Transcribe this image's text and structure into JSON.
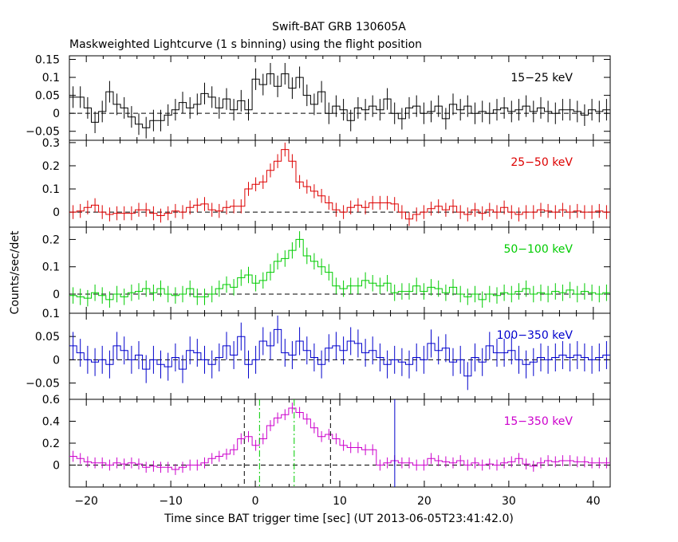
{
  "title_line1": "Swift-BAT GRB 130605A",
  "title_line2": "Maskweighted Lightcurve (1 s binning) using the flight position",
  "ylabel": "Counts/sec/det",
  "xlabel": "Time since BAT trigger time [sec] (UT 2013-06-05T23:41:42.0)",
  "chart_data": {
    "type": "line",
    "style": "step-with-error-bars",
    "x_range": [
      -22,
      42
    ],
    "x_ticks": [
      -20,
      -10,
      0,
      10,
      20,
      30,
      40
    ],
    "x_tick_labels": [
      "−20",
      "−10",
      "0",
      "10",
      "20",
      "30",
      "40"
    ],
    "zero_reference_line": "dashed",
    "panels": [
      {
        "name": "15−25 keV",
        "color": "#000000",
        "ylim": [
          -0.075,
          0.16
        ],
        "y_ticks": [
          -0.05,
          0,
          0.05,
          0.1,
          0.15
        ],
        "y_tick_labels": [
          "−0.05",
          "0",
          "0.05",
          "0.1",
          "0.15"
        ],
        "err": 0.03,
        "values": [
          0.045,
          0.045,
          0.015,
          -0.025,
          0.005,
          0.06,
          0.025,
          0.015,
          -0.01,
          -0.03,
          -0.04,
          -0.02,
          -0.02,
          -0.005,
          0.01,
          0.03,
          0.015,
          0.025,
          0.055,
          0.045,
          0.015,
          0.04,
          0.01,
          0.035,
          0.01,
          0.095,
          0.08,
          0.11,
          0.075,
          0.11,
          0.07,
          0.1,
          0.05,
          0.025,
          0.06,
          0.0,
          0.02,
          0.01,
          -0.02,
          0.015,
          0.01,
          0.02,
          0.01,
          0.04,
          0.0,
          -0.015,
          0.015,
          0.02,
          0.0,
          0.005,
          0.02,
          -0.015,
          0.025,
          0.01,
          0.02,
          0.0,
          0.005,
          0.0,
          0.01,
          0.015,
          0.005,
          0.01,
          0.02,
          0.005,
          0.015,
          0.005,
          0.0,
          0.01,
          0.01,
          0.005,
          -0.005,
          0.01,
          0.005,
          0.01
        ]
      },
      {
        "name": "25−50 keV",
        "color": "#dd0000",
        "ylim": [
          -0.065,
          0.31
        ],
        "y_ticks": [
          0,
          0.1,
          0.2,
          0.3
        ],
        "y_tick_labels": [
          "0",
          "0.1",
          "0.2",
          "0.3"
        ],
        "err": 0.03,
        "values": [
          0.0,
          0.005,
          0.02,
          0.03,
          0.0,
          -0.01,
          -0.005,
          -0.005,
          -0.005,
          0.01,
          0.01,
          -0.005,
          -0.015,
          -0.005,
          0.005,
          0.0,
          0.02,
          0.03,
          0.035,
          0.01,
          0.005,
          0.02,
          0.025,
          0.025,
          0.1,
          0.12,
          0.13,
          0.18,
          0.22,
          0.27,
          0.22,
          0.13,
          0.11,
          0.09,
          0.07,
          0.04,
          0.01,
          0.0,
          0.02,
          0.03,
          0.02,
          0.04,
          0.04,
          0.04,
          0.035,
          0.0,
          -0.03,
          -0.01,
          0.0,
          0.015,
          0.025,
          0.01,
          0.025,
          0.0,
          -0.01,
          0.01,
          -0.005,
          0.01,
          0.0,
          0.02,
          0.0,
          -0.01,
          0.0,
          0.0,
          0.01,
          0.005,
          0.0,
          0.01,
          0.0,
          0.005,
          0.0,
          0.0,
          0.005,
          0.0
        ]
      },
      {
        "name": "50−100 keV",
        "color": "#00cc00",
        "ylim": [
          -0.07,
          0.245
        ],
        "y_ticks": [
          0,
          0.1,
          0.2
        ],
        "y_tick_labels": [
          "0",
          "0.1",
          "0.2"
        ],
        "err": 0.03,
        "values": [
          -0.005,
          -0.01,
          -0.015,
          0.005,
          -0.005,
          -0.02,
          0.0,
          -0.01,
          0.005,
          0.01,
          0.02,
          0.005,
          0.02,
          0.0,
          -0.005,
          0.0,
          0.02,
          -0.01,
          -0.01,
          0.0,
          0.02,
          0.035,
          0.025,
          0.06,
          0.07,
          0.04,
          0.05,
          0.08,
          0.12,
          0.13,
          0.16,
          0.2,
          0.14,
          0.12,
          0.1,
          0.08,
          0.03,
          0.02,
          0.03,
          0.03,
          0.05,
          0.04,
          0.03,
          0.04,
          0.005,
          0.01,
          0.01,
          0.03,
          0.01,
          0.025,
          0.02,
          0.005,
          0.025,
          0.0,
          -0.01,
          0.0,
          -0.02,
          0.0,
          -0.005,
          0.005,
          0.0,
          0.01,
          0.02,
          0.0,
          0.005,
          0.0,
          0.01,
          0.005,
          0.015,
          0.0,
          0.01,
          0.005,
          0.0,
          0.005
        ]
      },
      {
        "name": "100−350 keV",
        "color": "#0000cc",
        "ylim": [
          -0.085,
          0.1
        ],
        "y_ticks": [
          -0.05,
          0,
          0.05,
          0.1
        ],
        "y_tick_labels": [
          "−0.05",
          "0",
          "0.05",
          "0.1"
        ],
        "err": 0.03,
        "values": [
          0.03,
          0.015,
          0.0,
          -0.005,
          0.0,
          -0.01,
          0.03,
          0.02,
          0.0,
          0.01,
          -0.02,
          0.0,
          -0.01,
          -0.015,
          0.005,
          -0.02,
          0.02,
          0.015,
          0.0,
          -0.01,
          0.005,
          0.03,
          0.01,
          0.05,
          -0.01,
          0.0,
          0.04,
          0.03,
          0.065,
          0.015,
          0.01,
          0.04,
          0.02,
          0.005,
          -0.01,
          0.025,
          0.03,
          0.02,
          0.04,
          0.035,
          0.015,
          0.02,
          0.005,
          -0.01,
          0.0,
          -0.005,
          -0.01,
          0.005,
          0.0,
          0.035,
          0.02,
          0.025,
          -0.005,
          0.0,
          -0.035,
          0.005,
          -0.005,
          0.03,
          0.015,
          0.015,
          0.02,
          0.0,
          -0.01,
          -0.005,
          0.005,
          0.0,
          0.005,
          0.01,
          0.005,
          0.01,
          0.005,
          0.0,
          0.005,
          0.01
        ]
      },
      {
        "name": "15−350 keV",
        "color": "#cc00cc",
        "ylim": [
          -0.2,
          0.6
        ],
        "y_ticks": [
          0,
          0.2,
          0.4,
          0.6
        ],
        "y_tick_labels": [
          "0",
          "0.2",
          "0.4",
          "0.6"
        ],
        "err": 0.05,
        "values": [
          0.08,
          0.06,
          0.03,
          0.02,
          0.02,
          0.0,
          0.02,
          0.01,
          0.02,
          0.01,
          -0.02,
          -0.01,
          -0.02,
          -0.02,
          -0.04,
          -0.02,
          0.0,
          0.0,
          0.02,
          0.06,
          0.08,
          0.1,
          0.14,
          0.24,
          0.26,
          0.18,
          0.24,
          0.36,
          0.43,
          0.46,
          0.52,
          0.48,
          0.42,
          0.34,
          0.26,
          0.28,
          0.24,
          0.18,
          0.16,
          0.16,
          0.14,
          0.14,
          0.0,
          0.02,
          0.04,
          0.02,
          0.02,
          0.0,
          0.0,
          0.06,
          0.04,
          0.03,
          0.02,
          0.04,
          0.0,
          0.02,
          0.0,
          0.01,
          0.0,
          0.02,
          0.03,
          0.06,
          0.01,
          -0.01,
          0.02,
          0.04,
          0.03,
          0.04,
          0.04,
          0.03,
          0.03,
          0.02,
          0.02,
          0.02
        ],
        "markers": [
          {
            "x": -1.3,
            "style": "dashed",
            "color": "#000000"
          },
          {
            "x": 0.5,
            "style": "dashdot",
            "color": "#00cc00"
          },
          {
            "x": 4.6,
            "style": "dashdot",
            "color": "#00cc00"
          },
          {
            "x": 8.9,
            "style": "dashed",
            "color": "#000000"
          },
          {
            "x": 16.5,
            "style": "solid",
            "color": "#0000cc"
          }
        ]
      }
    ]
  }
}
